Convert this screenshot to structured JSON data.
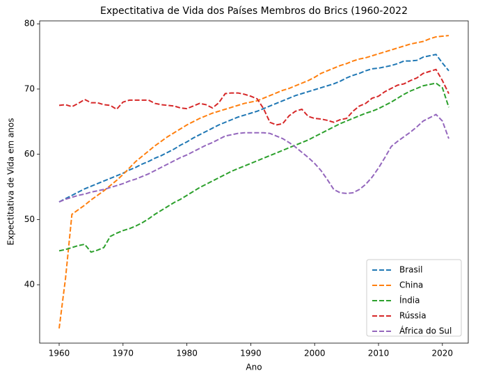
{
  "chart_data": {
    "type": "line",
    "title": "Expectitativa de Vida dos Países Membros do Brics (1960-2022",
    "x_label": "Ano",
    "y_label": "Expectitativa de Vida em anos",
    "x": [
      1960,
      1961,
      1962,
      1963,
      1964,
      1965,
      1966,
      1967,
      1968,
      1969,
      1970,
      1971,
      1972,
      1973,
      1974,
      1975,
      1976,
      1977,
      1978,
      1979,
      1980,
      1981,
      1982,
      1983,
      1984,
      1985,
      1986,
      1987,
      1988,
      1989,
      1990,
      1991,
      1992,
      1993,
      1994,
      1995,
      1996,
      1997,
      1998,
      1999,
      2000,
      2001,
      2002,
      2003,
      2004,
      2005,
      2006,
      2007,
      2008,
      2009,
      2010,
      2011,
      2012,
      2013,
      2014,
      2015,
      2016,
      2017,
      2018,
      2019,
      2020,
      2021
    ],
    "series": [
      {
        "name": "Brasil",
        "color": "#1f77b4",
        "values": [
          52.7,
          53.2,
          53.7,
          54.2,
          54.7,
          55.1,
          55.5,
          55.9,
          56.3,
          56.7,
          57.1,
          57.6,
          58.0,
          58.5,
          58.9,
          59.4,
          59.8,
          60.3,
          60.8,
          61.4,
          61.9,
          62.5,
          63.0,
          63.5,
          64.0,
          64.5,
          64.9,
          65.3,
          65.7,
          66.0,
          66.3,
          66.6,
          67.0,
          67.4,
          67.8,
          68.2,
          68.6,
          69.0,
          69.3,
          69.6,
          69.9,
          70.2,
          70.5,
          70.8,
          71.2,
          71.7,
          72.1,
          72.4,
          72.8,
          73.1,
          73.2,
          73.4,
          73.6,
          73.9,
          74.3,
          74.3,
          74.4,
          74.9,
          75.1,
          75.3,
          74.0,
          72.8
        ]
      },
      {
        "name": "China",
        "color": "#ff7f0e",
        "values": [
          33.3,
          41.0,
          50.8,
          51.5,
          52.2,
          53.0,
          53.7,
          54.4,
          55.2,
          56.0,
          56.9,
          57.9,
          58.9,
          59.7,
          60.5,
          61.3,
          62.0,
          62.7,
          63.3,
          63.9,
          64.5,
          65.0,
          65.5,
          65.9,
          66.3,
          66.6,
          66.9,
          67.2,
          67.5,
          67.8,
          68.0,
          68.2,
          68.6,
          69.0,
          69.4,
          69.8,
          70.1,
          70.5,
          70.9,
          71.3,
          71.8,
          72.4,
          72.8,
          73.2,
          73.6,
          73.9,
          74.3,
          74.6,
          74.8,
          75.1,
          75.4,
          75.7,
          76.0,
          76.3,
          76.6,
          76.9,
          77.1,
          77.3,
          77.7,
          78.0,
          78.1,
          78.2
        ]
      },
      {
        "name": "Índia",
        "color": "#2ca02c",
        "values": [
          45.2,
          45.4,
          45.7,
          46.0,
          46.2,
          45.0,
          45.3,
          45.7,
          47.4,
          47.9,
          48.3,
          48.6,
          49.0,
          49.5,
          50.1,
          50.8,
          51.4,
          52.0,
          52.6,
          53.1,
          53.7,
          54.3,
          54.9,
          55.4,
          55.9,
          56.4,
          56.9,
          57.4,
          57.8,
          58.2,
          58.6,
          59.0,
          59.4,
          59.8,
          60.2,
          60.6,
          61.0,
          61.4,
          61.8,
          62.2,
          62.7,
          63.2,
          63.7,
          64.2,
          64.7,
          65.1,
          65.5,
          65.9,
          66.3,
          66.6,
          67.0,
          67.5,
          68.0,
          68.6,
          69.2,
          69.7,
          70.1,
          70.5,
          70.7,
          70.9,
          70.2,
          67.2
        ]
      },
      {
        "name": "Rússia",
        "color": "#d62728",
        "values": [
          67.5,
          67.6,
          67.3,
          67.8,
          68.4,
          67.9,
          67.9,
          67.6,
          67.5,
          66.9,
          68.0,
          68.3,
          68.3,
          68.3,
          68.3,
          67.8,
          67.6,
          67.5,
          67.4,
          67.1,
          67.0,
          67.4,
          67.8,
          67.6,
          67.1,
          67.9,
          69.3,
          69.4,
          69.4,
          69.2,
          68.9,
          68.5,
          67.0,
          64.9,
          64.5,
          64.7,
          65.9,
          66.6,
          66.9,
          65.8,
          65.5,
          65.4,
          65.2,
          64.9,
          65.3,
          65.5,
          66.6,
          67.4,
          67.8,
          68.6,
          68.9,
          69.6,
          70.1,
          70.6,
          70.8,
          71.3,
          71.7,
          72.4,
          72.7,
          73.0,
          71.3,
          69.3
        ]
      },
      {
        "name": "África do Sul",
        "color": "#9467bd",
        "values": [
          52.7,
          53.1,
          53.4,
          53.7,
          53.9,
          54.2,
          54.4,
          54.6,
          54.9,
          55.2,
          55.5,
          55.9,
          56.2,
          56.6,
          57.0,
          57.5,
          58.0,
          58.5,
          59.0,
          59.5,
          59.9,
          60.4,
          60.9,
          61.4,
          61.8,
          62.3,
          62.8,
          63.0,
          63.2,
          63.3,
          63.3,
          63.3,
          63.3,
          63.2,
          62.8,
          62.4,
          61.8,
          61.1,
          60.3,
          59.5,
          58.6,
          57.5,
          56.1,
          54.6,
          54.1,
          54.0,
          54.1,
          54.6,
          55.4,
          56.5,
          57.9,
          59.5,
          61.2,
          62.0,
          62.7,
          63.4,
          64.2,
          65.1,
          65.6,
          66.1,
          65.1,
          62.4
        ]
      }
    ],
    "xlim": [
      1956.95,
      2024.05
    ],
    "ylim": [
      31.05,
      80.45
    ],
    "xticks": [
      1960,
      1970,
      1980,
      1990,
      2000,
      2010,
      2020
    ],
    "yticks": [
      40,
      50,
      60,
      70,
      80
    ],
    "line_style": "dashed",
    "grid": false,
    "legend_position": "lower right"
  }
}
